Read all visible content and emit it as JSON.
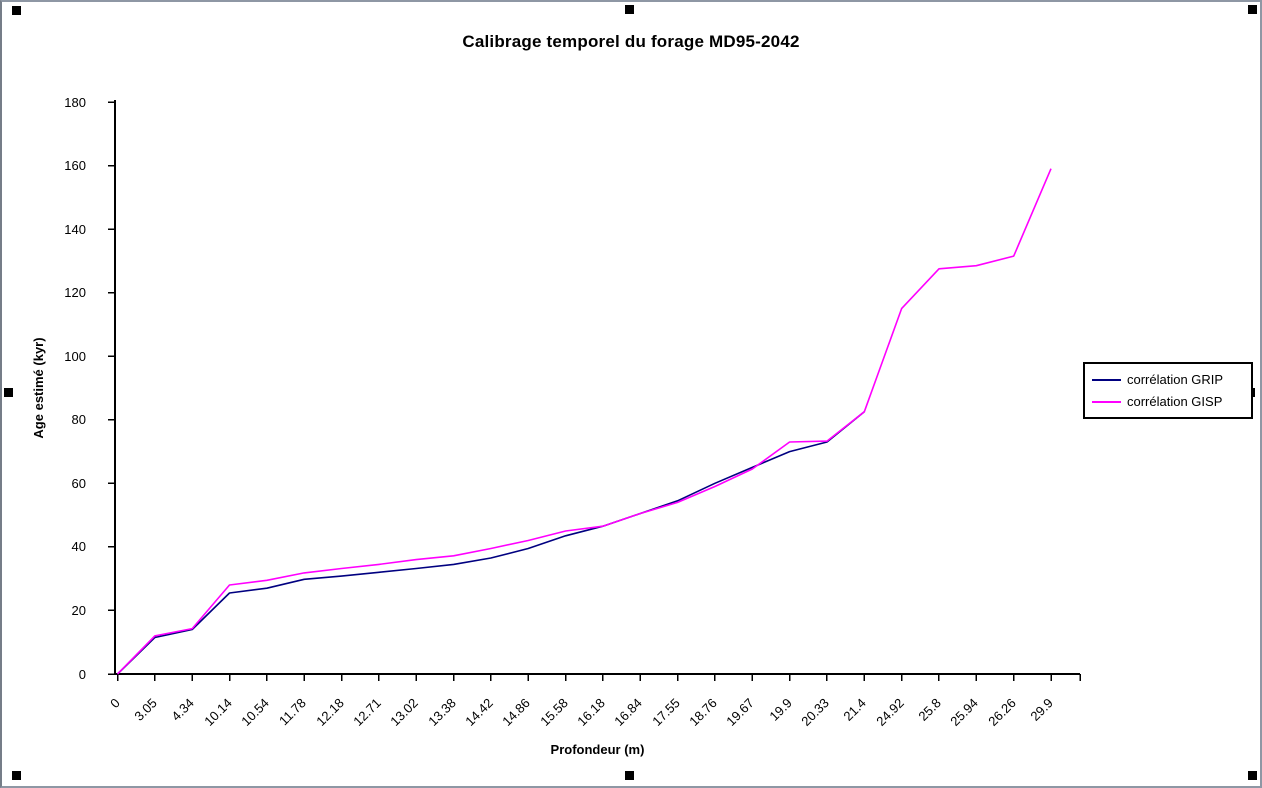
{
  "chart_data": {
    "type": "line",
    "title": "Calibrage temporel du forage MD95-2042",
    "xlabel": "Profondeur (m)",
    "ylabel": "Age estimé (kyr)",
    "ylim": [
      0,
      180
    ],
    "y_tick_step": 20,
    "y_ticks": [
      0,
      20,
      40,
      60,
      80,
      100,
      120,
      140,
      160,
      180
    ],
    "grid": false,
    "legend_position": "right",
    "background": "#ffffff",
    "axis_color": "#000000",
    "categories": [
      "0",
      "3.05",
      "4.34",
      "10.14",
      "10.54",
      "11.78",
      "12.18",
      "12.71",
      "13.02",
      "13.38",
      "14.42",
      "14.86",
      "15.58",
      "16.18",
      "16.84",
      "17.55",
      "18.76",
      "19.67",
      "19.9",
      "20.33",
      "21.4",
      "24.92",
      "25.8",
      "25.94",
      "26.26",
      "29.9"
    ],
    "series": [
      {
        "name": "corrélation GRIP",
        "color": "#000080",
        "values": [
          0,
          11.5,
          14,
          25.5,
          27,
          29.8,
          30.8,
          32,
          33.2,
          34.5,
          36.5,
          39.5,
          43.5,
          46.5,
          50.5,
          54.5,
          60,
          65,
          70,
          73,
          82.5,
          null,
          null,
          null,
          null,
          null
        ]
      },
      {
        "name": "corrélation GISP",
        "color": "#FF00FF",
        "values": [
          0,
          12,
          14.3,
          28,
          29.5,
          31.8,
          33.2,
          34.5,
          36,
          37.2,
          39.5,
          42,
          45,
          46.5,
          50.5,
          54,
          59,
          64.5,
          73,
          73.3,
          82.5,
          115,
          127.5,
          128.5,
          131.5,
          159
        ]
      }
    ]
  }
}
